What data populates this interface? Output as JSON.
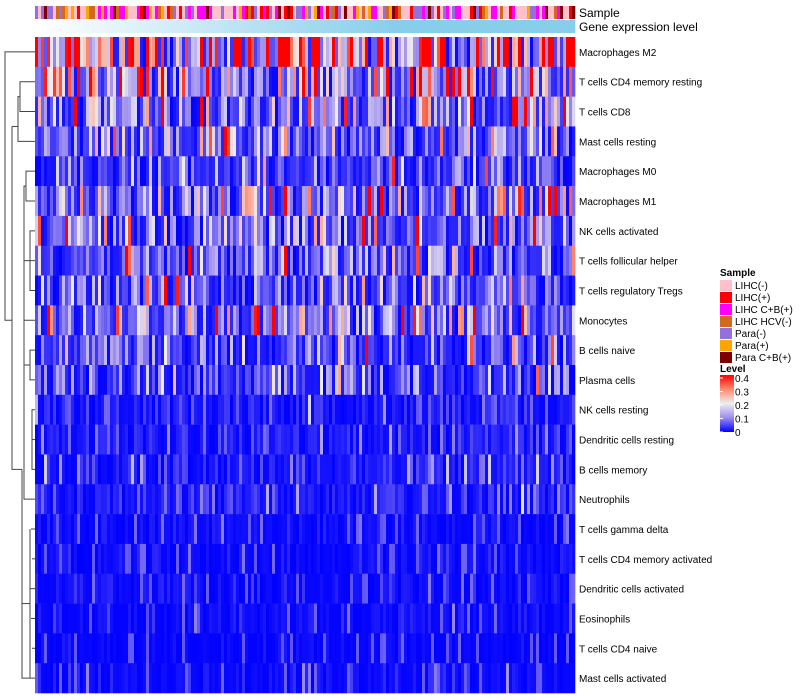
{
  "chart_data": {
    "type": "heatmap",
    "title": "",
    "annotations": [
      {
        "name": "Sample",
        "type": "categorical"
      },
      {
        "name": "Gene expression level",
        "type": "continuous",
        "colors": [
          "#FFFFFF",
          "#87CEEB"
        ]
      }
    ],
    "rows": [
      {
        "label": "Macrophages M2",
        "mean_level": 0.3
      },
      {
        "label": "T cells CD4 memory resting",
        "mean_level": 0.15
      },
      {
        "label": "T cells CD8",
        "mean_level": 0.13
      },
      {
        "label": "Mast cells resting",
        "mean_level": 0.08
      },
      {
        "label": "Macrophages M0",
        "mean_level": 0.06
      },
      {
        "label": "Macrophages M1",
        "mean_level": 0.1
      },
      {
        "label": "NK cells activated",
        "mean_level": 0.1
      },
      {
        "label": "T cells follicular helper",
        "mean_level": 0.08
      },
      {
        "label": "T cells regulatory  Tregs",
        "mean_level": 0.07
      },
      {
        "label": "Monocytes",
        "mean_level": 0.12
      },
      {
        "label": "B cells naive",
        "mean_level": 0.06
      },
      {
        "label": "Plasma cells",
        "mean_level": 0.06
      },
      {
        "label": "NK cells resting",
        "mean_level": 0.03
      },
      {
        "label": "Dendritic cells resting",
        "mean_level": 0.03
      },
      {
        "label": "B cells memory",
        "mean_level": 0.03
      },
      {
        "label": "Neutrophils",
        "mean_level": 0.03
      },
      {
        "label": "T cells gamma delta",
        "mean_level": 0.01
      },
      {
        "label": "T cells CD4 memory activated",
        "mean_level": 0.01
      },
      {
        "label": "Dendritic cells activated",
        "mean_level": 0.01
      },
      {
        "label": "Eosinophils",
        "mean_level": 0.01
      },
      {
        "label": "T cells CD4 naive",
        "mean_level": 0.005
      },
      {
        "label": "Mast cells activated",
        "mean_level": 0.01
      }
    ],
    "n_columns": 180,
    "legend_sample": {
      "title": "Sample",
      "entries": [
        {
          "label": "LIHC(-)",
          "color": "#FFC0CB"
        },
        {
          "label": "LIHC(+)",
          "color": "#FF0000"
        },
        {
          "label": "LIHC C+B(+)",
          "color": "#FF00FF"
        },
        {
          "label": "LIHC HCV(-)",
          "color": "#D2691E"
        },
        {
          "label": "Para(-)",
          "color": "#9370DB"
        },
        {
          "label": "Para(+)",
          "color": "#FFA500"
        },
        {
          "label": "Para C+B(+)",
          "color": "#800000"
        }
      ]
    },
    "legend_level": {
      "title": "Level",
      "ticks": [
        "0.4",
        "0.3",
        "0.2",
        "0.1",
        "0"
      ],
      "range": [
        0,
        0.4
      ],
      "colors": [
        "#0000FF",
        "#EEEEEE",
        "#FF0000"
      ]
    },
    "legend_placement": "right"
  }
}
